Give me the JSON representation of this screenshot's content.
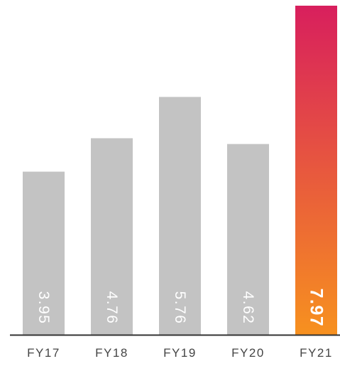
{
  "chart_data": {
    "type": "bar",
    "title": "",
    "xlabel": "",
    "ylabel": "",
    "categories": [
      "FY17",
      "FY18",
      "FY19",
      "FY20",
      "FY21"
    ],
    "values": [
      3.95,
      4.76,
      5.76,
      4.62,
      7.97
    ],
    "value_labels": [
      "3.95",
      "4.76",
      "5.76",
      "4.62",
      "7.97"
    ],
    "ylim": [
      0,
      7.97
    ],
    "grid": false,
    "legend": "none",
    "highlight_index": 4,
    "colors": {
      "bar": "#c3c3c3",
      "highlight_top": "#d81f5d",
      "highlight_bottom": "#f7911f",
      "baseline": "#333333"
    }
  }
}
